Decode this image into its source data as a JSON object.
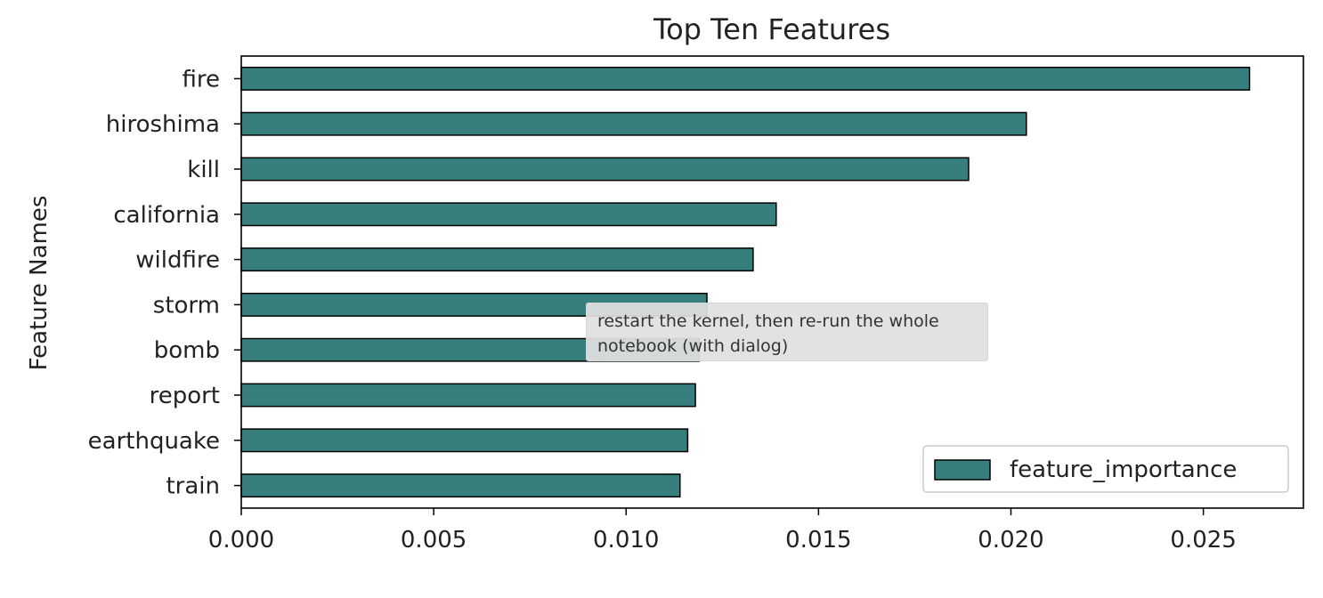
{
  "chart_data": {
    "type": "bar",
    "orientation": "horizontal",
    "title": "Top Ten Features",
    "xlabel": "",
    "ylabel": "Feature Names",
    "categories": [
      "fire",
      "hiroshima",
      "kill",
      "california",
      "wildfire",
      "storm",
      "bomb",
      "report",
      "earthquake",
      "train"
    ],
    "series": [
      {
        "name": "feature_importance",
        "values": [
          0.0262,
          0.0204,
          0.0189,
          0.0139,
          0.0133,
          0.0121,
          0.0119,
          0.0118,
          0.0116,
          0.0114
        ]
      }
    ],
    "xlim": [
      0,
      0.0276
    ],
    "xticks": [
      "0.000",
      "0.005",
      "0.010",
      "0.015",
      "0.020",
      "0.025"
    ],
    "xtick_values": [
      0,
      0.005,
      0.01,
      0.015,
      0.02,
      0.025
    ],
    "grid": false,
    "legend_position": "lower-right",
    "colors": {
      "bar_fill": "#367f7c",
      "bar_edge": "#000000"
    }
  },
  "tooltip": {
    "line1": "restart the kernel, then re-run the whole",
    "line2": "notebook (with dialog)"
  }
}
